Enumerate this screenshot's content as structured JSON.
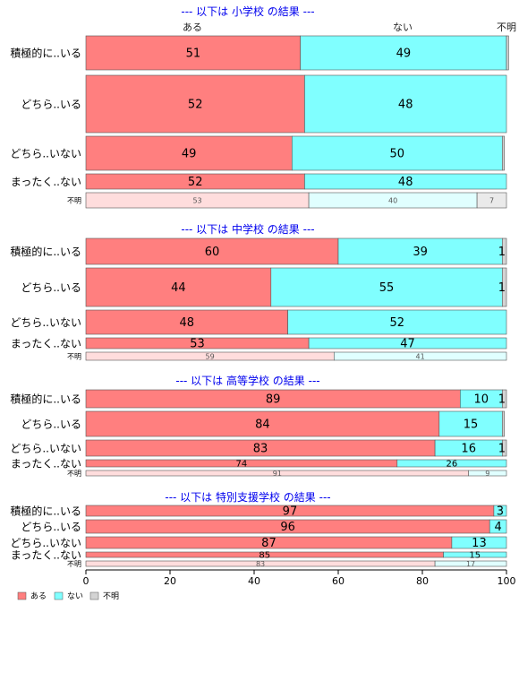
{
  "chart_data": {
    "type": "bar",
    "orientation": "horizontal",
    "stacked": true,
    "xlim": [
      0,
      100
    ],
    "x_ticks": [
      "0",
      "20",
      "40",
      "60",
      "80",
      "100"
    ],
    "grid": false,
    "legend_position": "bottom-left",
    "series": [
      {
        "name": "ある",
        "color": "#FF7F7F"
      },
      {
        "name": "ない",
        "color": "#80FFFF"
      },
      {
        "name": "不明",
        "color": "#D3D3D3"
      }
    ],
    "top_series_labels": [
      "ある",
      "ない",
      "不明"
    ],
    "panels": [
      {
        "title": "--- 以下は 小学校 の結果 ---",
        "rows": [
          {
            "label": "積極的に..いる",
            "values": [
              51,
              49,
              0.5
            ],
            "labels": [
              "51",
              "49",
              ""
            ]
          },
          {
            "label": "どちら..いる",
            "values": [
              52,
              48,
              0
            ],
            "labels": [
              "52",
              "48",
              ""
            ]
          },
          {
            "label": "どちら..いない",
            "values": [
              49,
              50,
              0.5
            ],
            "labels": [
              "49",
              "50",
              ""
            ]
          },
          {
            "label": "まったく..ない",
            "values": [
              52,
              48,
              0
            ],
            "labels": [
              "52",
              "48",
              ""
            ]
          },
          {
            "label": "不明",
            "values": [
              53,
              40,
              7
            ],
            "labels": [
              "53",
              "40",
              "7"
            ],
            "pale": true
          }
        ]
      },
      {
        "title": "--- 以下は 中学校 の結果 ---",
        "rows": [
          {
            "label": "積極的に..いる",
            "values": [
              60,
              39,
              1
            ],
            "labels": [
              "60",
              "39",
              "1"
            ]
          },
          {
            "label": "どちら..いる",
            "values": [
              44,
              55,
              1
            ],
            "labels": [
              "44",
              "55",
              "1"
            ]
          },
          {
            "label": "どちら..いない",
            "values": [
              48,
              52,
              0
            ],
            "labels": [
              "48",
              "52",
              ""
            ]
          },
          {
            "label": "まったく..ない",
            "values": [
              53,
              47,
              0
            ],
            "labels": [
              "53",
              "47",
              ""
            ]
          },
          {
            "label": "不明",
            "values": [
              59,
              41,
              0
            ],
            "labels": [
              "59",
              "41",
              ""
            ],
            "pale": true
          }
        ]
      },
      {
        "title": "--- 以下は 高等学校 の結果 ---",
        "rows": [
          {
            "label": "積極的に..いる",
            "values": [
              89,
              10,
              1
            ],
            "labels": [
              "89",
              "10",
              "1"
            ]
          },
          {
            "label": "どちら..いる",
            "values": [
              84,
              15,
              0.5
            ],
            "labels": [
              "84",
              "15",
              ""
            ]
          },
          {
            "label": "どちら..いない",
            "values": [
              83,
              16,
              1
            ],
            "labels": [
              "83",
              "16",
              "1"
            ]
          },
          {
            "label": "まったく..ない",
            "values": [
              74,
              26,
              0
            ],
            "labels": [
              "74",
              "26",
              ""
            ]
          },
          {
            "label": "不明",
            "values": [
              91,
              9,
              0
            ],
            "labels": [
              "91",
              "9",
              ""
            ],
            "pale": true
          }
        ]
      },
      {
        "title": "--- 以下は 特別支援学校 の結果 ---",
        "rows": [
          {
            "label": "積極的に..いる",
            "values": [
              97,
              3,
              0
            ],
            "labels": [
              "97",
              "3",
              ""
            ]
          },
          {
            "label": "どちら..いる",
            "values": [
              96,
              4,
              0
            ],
            "labels": [
              "96",
              "4",
              ""
            ]
          },
          {
            "label": "どちら..いない",
            "values": [
              87,
              13,
              0
            ],
            "labels": [
              "87",
              "13",
              ""
            ]
          },
          {
            "label": "まったく..ない",
            "values": [
              85,
              15,
              0
            ],
            "labels": [
              "85",
              "15",
              ""
            ]
          },
          {
            "label": "不明",
            "values": [
              83,
              17,
              0
            ],
            "labels": [
              "83",
              "17",
              ""
            ],
            "pale": true
          }
        ]
      }
    ]
  }
}
